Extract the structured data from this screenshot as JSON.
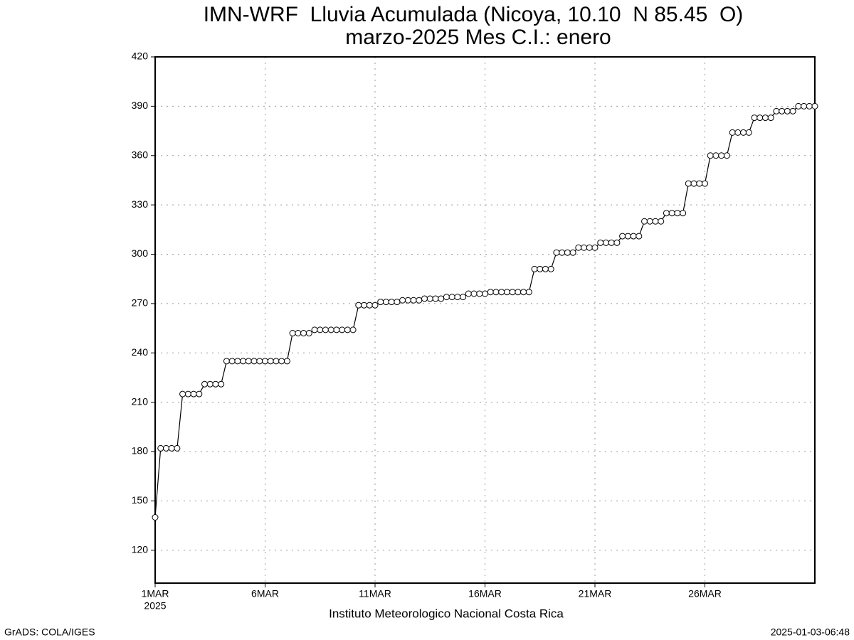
{
  "chart_data": {
    "type": "line",
    "title": "IMN-WRF  Lluvia Acumulada (Nicoya, 10.10  N 85.45  O)",
    "subtitle": "marzo-2025 Mes C.I.: enero",
    "x_label": "Instituto Meteorologico Nacional Costa Rica",
    "x_year_label": "2025",
    "footer_left": "GrADS: COLA/IGES",
    "footer_right": "2025-01-03-06:48",
    "xlim": [
      0,
      30
    ],
    "ylim": [
      100,
      420
    ],
    "xticks": [
      {
        "value": 0,
        "label": "1MAR"
      },
      {
        "value": 5,
        "label": "6MAR"
      },
      {
        "value": 10,
        "label": "11MAR"
      },
      {
        "value": 15,
        "label": "16MAR"
      },
      {
        "value": 20,
        "label": "21MAR"
      },
      {
        "value": 25,
        "label": "26MAR"
      }
    ],
    "yticks": [
      120,
      150,
      180,
      210,
      240,
      270,
      300,
      330,
      360,
      390,
      420
    ],
    "grid": true,
    "series": [
      {
        "color": "#000000",
        "x": [
          0,
          0.25,
          0.5,
          0.75,
          1,
          1.25,
          1.5,
          1.75,
          2,
          2.25,
          2.5,
          2.75,
          3,
          3.25,
          3.5,
          3.75,
          4,
          4.25,
          4.5,
          4.75,
          5,
          5.25,
          5.5,
          5.75,
          6,
          6.25,
          6.5,
          6.75,
          7,
          7.25,
          7.5,
          7.75,
          8,
          8.25,
          8.5,
          8.75,
          9,
          9.25,
          9.5,
          9.75,
          10,
          10.25,
          10.5,
          10.75,
          11,
          11.25,
          11.5,
          11.75,
          12,
          12.25,
          12.5,
          12.75,
          13,
          13.25,
          13.5,
          13.75,
          14,
          14.25,
          14.5,
          14.75,
          15,
          15.25,
          15.5,
          15.75,
          16,
          16.25,
          16.5,
          16.75,
          17,
          17.25,
          17.5,
          17.75,
          18,
          18.25,
          18.5,
          18.75,
          19,
          19.25,
          19.5,
          19.75,
          20,
          20.25,
          20.5,
          20.75,
          21,
          21.25,
          21.5,
          21.75,
          22,
          22.25,
          22.5,
          22.75,
          23,
          23.25,
          23.5,
          23.75,
          24,
          24.25,
          24.5,
          24.75,
          25,
          25.25,
          25.5,
          25.75,
          26,
          26.25,
          26.5,
          26.75,
          27,
          27.25,
          27.5,
          27.75,
          28,
          28.25,
          28.5,
          28.75,
          29,
          29.25,
          29.5,
          29.75,
          30
        ],
        "values": [
          140,
          182,
          182,
          182,
          182,
          215,
          215,
          215,
          215,
          221,
          221,
          221,
          221,
          235,
          235,
          235,
          235,
          235,
          235,
          235,
          235,
          235,
          235,
          235,
          235,
          252,
          252,
          252,
          252,
          254,
          254,
          254,
          254,
          254,
          254,
          254,
          254,
          269,
          269,
          269,
          269,
          271,
          271,
          271,
          271,
          272,
          272,
          272,
          272,
          273,
          273,
          273,
          273,
          274,
          274,
          274,
          274,
          276,
          276,
          276,
          276,
          277,
          277,
          277,
          277,
          277,
          277,
          277,
          277,
          291,
          291,
          291,
          291,
          301,
          301,
          301,
          301,
          304,
          304,
          304,
          304,
          307,
          307,
          307,
          307,
          311,
          311,
          311,
          311,
          320,
          320,
          320,
          320,
          325,
          325,
          325,
          325,
          343,
          343,
          343,
          343,
          360,
          360,
          360,
          360,
          374,
          374,
          374,
          374,
          383,
          383,
          383,
          383,
          387,
          387,
          387,
          387,
          390,
          390,
          390,
          390
        ]
      }
    ]
  }
}
